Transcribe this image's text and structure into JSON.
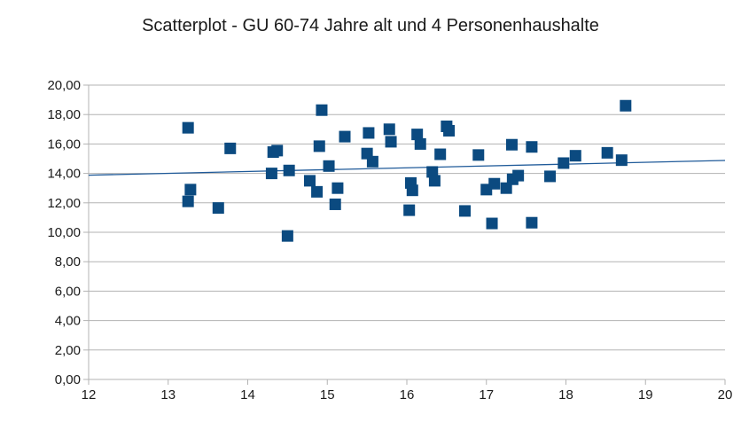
{
  "chart_data": {
    "type": "scatter",
    "title": "Scatterplot - GU 60-74 Jahre alt und 4 Personenhaushalte",
    "xlabel": "",
    "ylabel": "",
    "xlim": [
      12,
      20
    ],
    "ylim": [
      0,
      20
    ],
    "x_ticks": [
      "12",
      "13",
      "14",
      "15",
      "16",
      "17",
      "18",
      "19",
      "20"
    ],
    "y_ticks": [
      "0,00",
      "2,00",
      "4,00",
      "6,00",
      "8,00",
      "10,00",
      "12,00",
      "14,00",
      "16,00",
      "18,00",
      "20,00"
    ],
    "grid": "horizontal",
    "marker": "square",
    "marker_color": "#0b4a80",
    "trendline": {
      "x": [
        12,
        20
      ],
      "y": [
        13.88,
        14.88
      ],
      "color": "#1f5a99"
    },
    "points": [
      {
        "x": 13.25,
        "y": 17.1
      },
      {
        "x": 13.25,
        "y": 12.1
      },
      {
        "x": 13.28,
        "y": 12.9
      },
      {
        "x": 13.63,
        "y": 11.65
      },
      {
        "x": 13.78,
        "y": 15.7
      },
      {
        "x": 14.3,
        "y": 14.0
      },
      {
        "x": 14.32,
        "y": 15.45
      },
      {
        "x": 14.37,
        "y": 15.55
      },
      {
        "x": 14.5,
        "y": 9.75
      },
      {
        "x": 14.52,
        "y": 14.2
      },
      {
        "x": 14.78,
        "y": 13.5
      },
      {
        "x": 14.87,
        "y": 12.75
      },
      {
        "x": 14.9,
        "y": 15.85
      },
      {
        "x": 14.93,
        "y": 18.3
      },
      {
        "x": 15.02,
        "y": 14.5
      },
      {
        "x": 15.1,
        "y": 11.9
      },
      {
        "x": 15.13,
        "y": 13.0
      },
      {
        "x": 15.22,
        "y": 16.5
      },
      {
        "x": 15.5,
        "y": 15.35
      },
      {
        "x": 15.52,
        "y": 16.75
      },
      {
        "x": 15.57,
        "y": 14.8
      },
      {
        "x": 15.78,
        "y": 17.0
      },
      {
        "x": 15.8,
        "y": 16.15
      },
      {
        "x": 16.03,
        "y": 11.5
      },
      {
        "x": 16.05,
        "y": 13.35
      },
      {
        "x": 16.07,
        "y": 12.85
      },
      {
        "x": 16.13,
        "y": 16.65
      },
      {
        "x": 16.17,
        "y": 16.0
      },
      {
        "x": 16.32,
        "y": 14.1
      },
      {
        "x": 16.35,
        "y": 13.5
      },
      {
        "x": 16.42,
        "y": 15.3
      },
      {
        "x": 16.5,
        "y": 17.2
      },
      {
        "x": 16.53,
        "y": 16.9
      },
      {
        "x": 16.73,
        "y": 11.45
      },
      {
        "x": 16.9,
        "y": 15.25
      },
      {
        "x": 17.0,
        "y": 12.9
      },
      {
        "x": 17.07,
        "y": 10.6
      },
      {
        "x": 17.1,
        "y": 13.3
      },
      {
        "x": 17.25,
        "y": 13.0
      },
      {
        "x": 17.32,
        "y": 15.95
      },
      {
        "x": 17.33,
        "y": 13.6
      },
      {
        "x": 17.4,
        "y": 13.85
      },
      {
        "x": 17.57,
        "y": 15.8
      },
      {
        "x": 17.57,
        "y": 10.65
      },
      {
        "x": 17.8,
        "y": 13.8
      },
      {
        "x": 17.97,
        "y": 14.7
      },
      {
        "x": 18.12,
        "y": 15.2
      },
      {
        "x": 18.52,
        "y": 15.4
      },
      {
        "x": 18.7,
        "y": 14.9
      },
      {
        "x": 18.75,
        "y": 18.6
      }
    ]
  }
}
